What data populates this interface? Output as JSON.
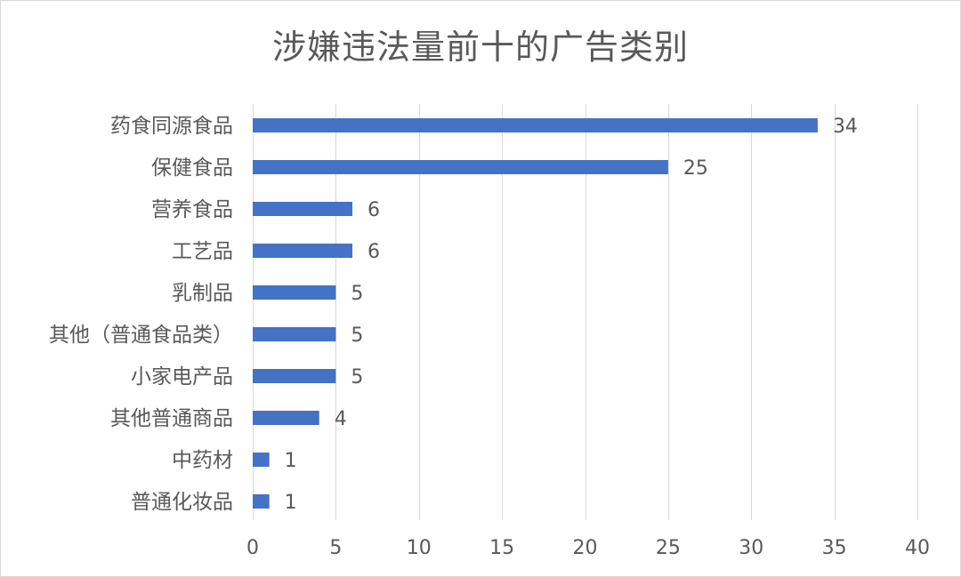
{
  "chart_data": {
    "type": "bar",
    "orientation": "horizontal",
    "title": "涉嫌违法量前十的广告类别",
    "categories": [
      "药食同源食品",
      "保健食品",
      "营养食品",
      "工艺品",
      "乳制品",
      "其他（普通食品类）",
      "小家电产品",
      "其他普通商品",
      "中药材",
      "普通化妆品"
    ],
    "values": [
      34,
      25,
      6,
      6,
      5,
      5,
      5,
      4,
      1,
      1
    ],
    "xlim": [
      0,
      40
    ],
    "xticks": [
      "0",
      "5",
      "10",
      "15",
      "20",
      "25",
      "30",
      "35",
      "40"
    ],
    "xlabel": "",
    "ylabel": "",
    "grid": "vertical",
    "legend": "none",
    "data_labels": true,
    "bar_color": "#4472C4",
    "grid_color": "#d9d9d9"
  }
}
